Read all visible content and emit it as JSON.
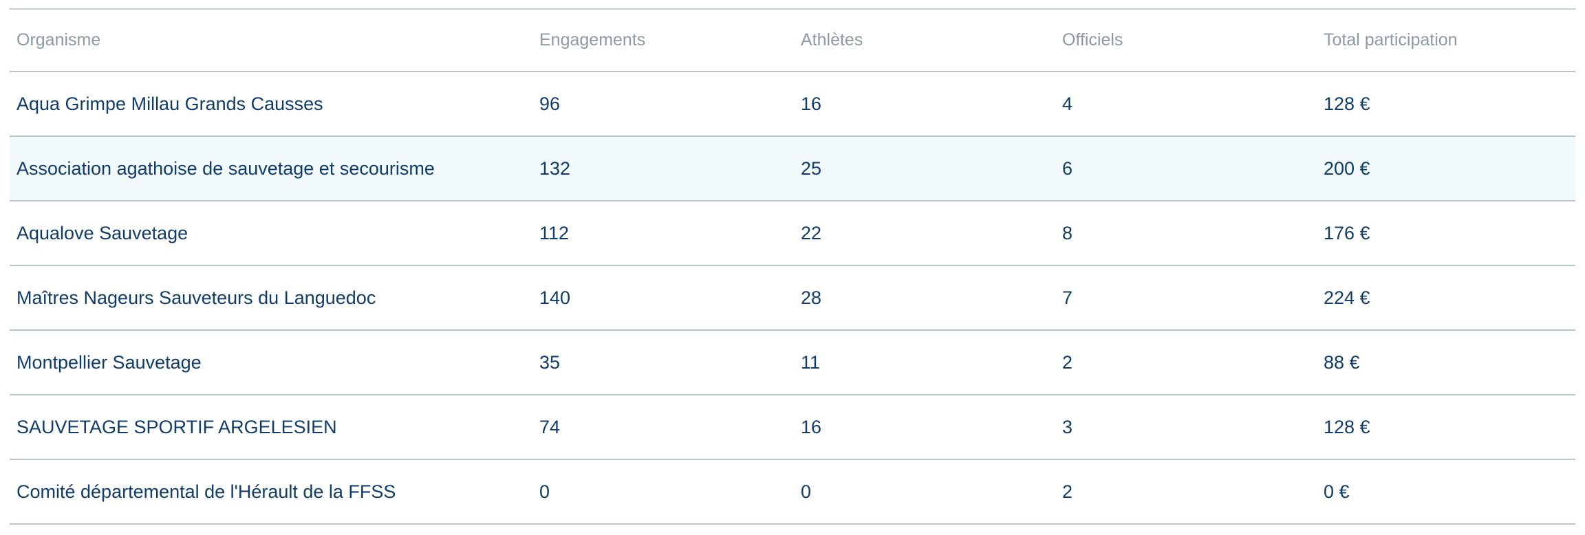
{
  "table": {
    "headers": [
      "Organisme",
      "Engagements",
      "Athlètes",
      "Officiels",
      "Total participation"
    ],
    "rows": [
      [
        "Aqua Grimpe Millau Grands Causses",
        "96",
        "16",
        "4",
        "128 €"
      ],
      [
        "Association agathoise de sauvetage et secourisme",
        "132",
        "25",
        "6",
        "200 €"
      ],
      [
        "Aqualove Sauvetage",
        "112",
        "22",
        "8",
        "176 €"
      ],
      [
        "Maîtres Nageurs Sauveteurs du Languedoc",
        "140",
        "28",
        "7",
        "224 €"
      ],
      [
        "Montpellier Sauvetage",
        "35",
        "11",
        "2",
        "88 €"
      ],
      [
        "SAUVETAGE SPORTIF ARGELESIEN",
        "74",
        "16",
        "3",
        "128 €"
      ],
      [
        "Comité départemental de l'Hérault de la FFSS",
        "0",
        "0",
        "2",
        "0 €"
      ]
    ],
    "highlighted_row": 1
  },
  "colors": {
    "header_text": "#8d9aa6",
    "cell_text": "#0f3c6a",
    "row_border": "#b9c6d2",
    "highlight_bg": "#f1f9fb"
  }
}
